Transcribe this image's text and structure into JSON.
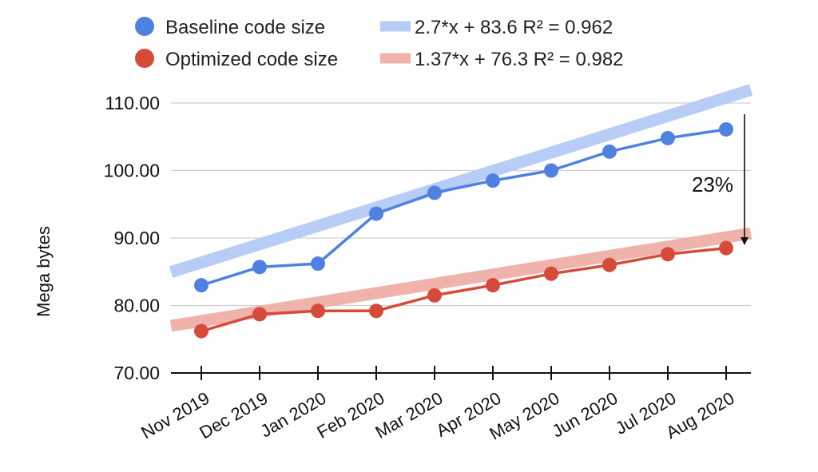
{
  "chart_data": {
    "type": "line",
    "title": "",
    "xlabel": "",
    "ylabel": "Mega bytes",
    "categories": [
      "Nov 2019",
      "Dec 2019",
      "Jan 2020",
      "Feb 2020",
      "Mar 2020",
      "Apr 2020",
      "May 2020",
      "Jun 2020",
      "Jul 2020",
      "Aug 2020"
    ],
    "ylim": [
      70,
      110
    ],
    "yticks": [
      "70.00",
      "80.00",
      "90.00",
      "100.00",
      "110.00"
    ],
    "grid": true,
    "legend_position": "top",
    "series": [
      {
        "name": "Baseline code size",
        "color": "#4f81e0",
        "values": [
          83.0,
          85.7,
          86.2,
          93.6,
          96.7,
          98.5,
          100.0,
          102.8,
          104.8,
          106.1
        ],
        "trendline": {
          "label": "2.7*x + 83.6 R² = 0.962",
          "slope": 2.7,
          "intercept": 83.6,
          "color": "#b7cdf5"
        }
      },
      {
        "name": "Optimized code size",
        "color": "#d64a3a",
        "values": [
          76.2,
          78.7,
          79.2,
          79.2,
          81.5,
          83.0,
          84.7,
          86.0,
          87.6,
          88.5
        ],
        "trendline": {
          "label": "1.37*x + 76.3 R² = 0.982",
          "slope": 1.37,
          "intercept": 76.3,
          "color": "#efb3ab"
        }
      }
    ],
    "annotation": {
      "text": "23%"
    }
  }
}
